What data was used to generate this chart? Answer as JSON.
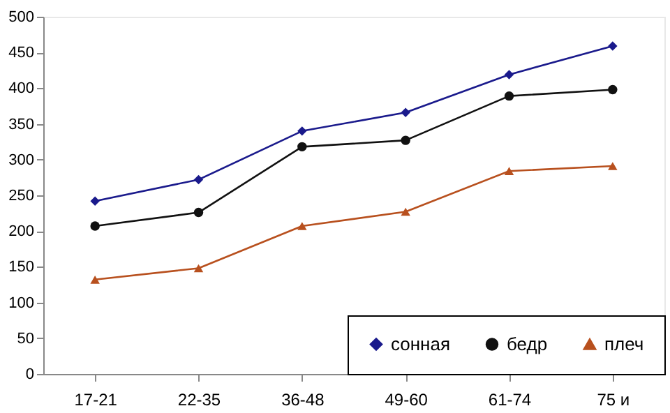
{
  "chart_data": {
    "type": "line",
    "categories": [
      "17-21",
      "22-35",
      "36-48",
      "49-60",
      "61-74",
      "75 и"
    ],
    "series": [
      {
        "name": "сонная",
        "color": "#1a1a8c",
        "marker": "diamond",
        "values": [
          242,
          272,
          340,
          366,
          419,
          459
        ]
      },
      {
        "name": "бедр",
        "color": "#111111",
        "marker": "circle",
        "values": [
          207,
          226,
          318,
          327,
          389,
          398
        ]
      },
      {
        "name": "плеч",
        "color": "#b8501e",
        "marker": "triangle",
        "values": [
          132,
          148,
          207,
          227,
          284,
          291
        ]
      }
    ],
    "ylim": [
      0,
      500
    ],
    "yticks": [
      0,
      50,
      100,
      150,
      200,
      250,
      300,
      350,
      400,
      450,
      500
    ],
    "grid": false,
    "legend": "bottom right"
  }
}
